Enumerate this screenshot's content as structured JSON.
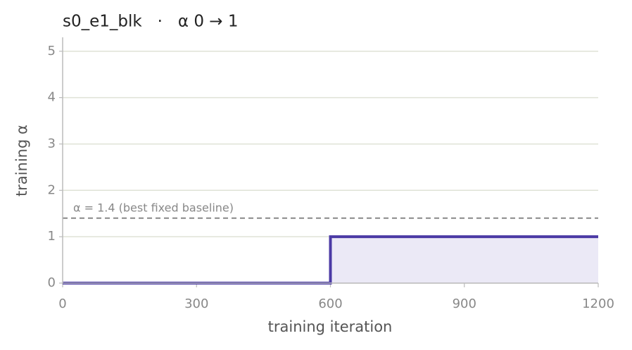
{
  "chart_data": {
    "type": "line",
    "title": "s0_e1_blk   ·   α 0 → 1",
    "x_label": "training iteration",
    "y_label": "training α",
    "x": [
      0,
      600,
      600,
      1200
    ],
    "series": [
      {
        "name": "training α",
        "color": "#4b3aa5",
        "fill": "#ebe9f6",
        "values": [
          0,
          0,
          1,
          1
        ]
      }
    ],
    "reference_line": {
      "value": 1.4,
      "label": "α = 1.4 (best fixed baseline)",
      "color": "#888888"
    },
    "xlim": [
      0,
      1200
    ],
    "xticks": [
      0,
      300,
      600,
      900,
      1200
    ],
    "ylim": [
      0,
      5.3
    ],
    "yticks": [
      0,
      1,
      2,
      3,
      4,
      5
    ],
    "grid": true
  }
}
